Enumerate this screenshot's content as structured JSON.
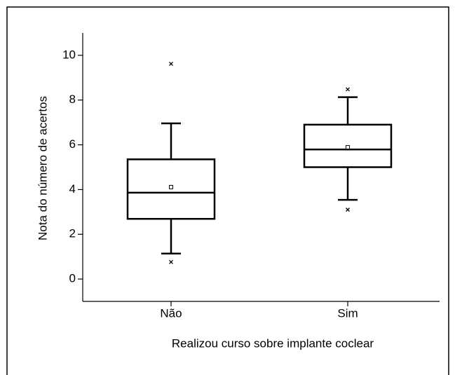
{
  "chart_data": {
    "type": "box",
    "xlabel": "Realizou curso sobre implante coclear",
    "ylabel": "Nota do número de acertos",
    "categories": [
      "Não",
      "Sim"
    ],
    "ylim": [
      -1,
      11
    ],
    "yticks": [
      0,
      2,
      4,
      6,
      8,
      10
    ],
    "color": "#000000",
    "boxes": [
      {
        "whisker_low": 1.14,
        "q1": 2.69,
        "median": 3.86,
        "q3": 5.35,
        "whisker_high": 6.96,
        "mean": 4.11,
        "outliers": [
          0.76,
          9.62
        ]
      },
      {
        "whisker_low": 3.54,
        "q1": 5.0,
        "median": 5.79,
        "q3": 6.9,
        "whisker_high": 8.13,
        "mean": 5.89,
        "outliers": [
          3.1,
          8.48
        ]
      }
    ]
  }
}
